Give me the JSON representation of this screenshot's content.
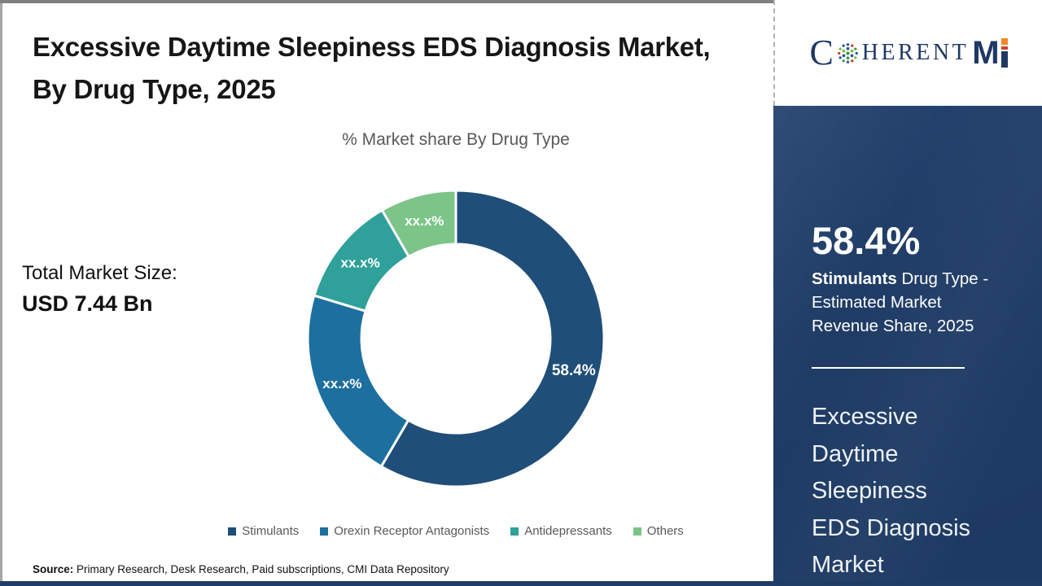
{
  "header": {
    "title": "Excessive Daytime Sleepiness EDS Diagnosis Market, By Drug Type, 2025",
    "subtitle": "% Market share By Drug Type"
  },
  "market_size": {
    "label": "Total Market Size:",
    "value": "USD 7.44 Bn"
  },
  "chart_data": {
    "type": "pie",
    "donut": true,
    "title": "% Market share By Drug Type",
    "start_angle_deg": 0,
    "legend_position": "bottom",
    "label_color": "#ffffff",
    "segments": [
      {
        "label": "Stimulants",
        "value": 58.4,
        "display": "58.4%",
        "color": "#1F4E79"
      },
      {
        "label": "Orexin Receptor Antagonists",
        "value": 21.3,
        "display": "xx.x%",
        "color": "#1D6F9F"
      },
      {
        "label": "Antidepressants",
        "value": 12.0,
        "display": "xx.x%",
        "color": "#2FA09A"
      },
      {
        "label": "Others",
        "value": 8.3,
        "display": "xx.x%",
        "color": "#7CC488"
      }
    ]
  },
  "source": {
    "label": "Source:",
    "text": " Primary Research, Desk Research, Paid subscriptions, CMI Data Repository"
  },
  "logo": {
    "c": "C",
    "herent": "HERENT",
    "m": "M"
  },
  "sidebar": {
    "big_value": "58.4%",
    "desc_bold": "Stimulants",
    "desc_rest": " Drug Type - Estimated Market Revenue Share, 2025",
    "panel_title": "Excessive Daytime Sleepiness EDS Diagnosis Market"
  }
}
